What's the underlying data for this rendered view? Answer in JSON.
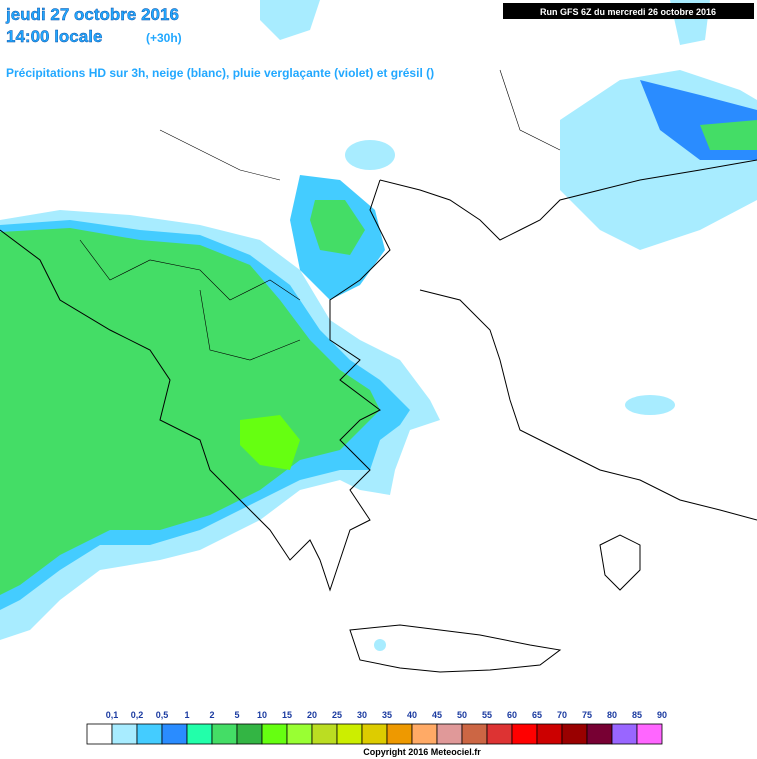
{
  "header": {
    "date": "jeudi 27 octobre 2016",
    "time": "14:00 locale",
    "offset": "(+30h)",
    "subtitle": "Précipitations HD sur 3h, neige (blanc), pluie verglaçante (violet) et grésil ()",
    "run": "Run GFS 6Z du mercredi 26 octobre 2016"
  },
  "legend": {
    "labels": [
      "0,1",
      "0,2",
      "0,5",
      "1",
      "2",
      "5",
      "10",
      "15",
      "20",
      "25",
      "30",
      "35",
      "40",
      "45",
      "50",
      "55",
      "60",
      "65",
      "70",
      "75",
      "80",
      "85",
      "90"
    ],
    "colors": [
      "#ffffff",
      "#a8ecff",
      "#44ccff",
      "#2a8cff",
      "#22ffaa",
      "#44dd66",
      "#33b544",
      "#66ff11",
      "#99ff33",
      "#bbdd22",
      "#ccee00",
      "#ddcc00",
      "#ee9900",
      "#ffaa66",
      "#e09999",
      "#cc6644",
      "#dd3333",
      "#ff0000",
      "#cc0000",
      "#990000",
      "#770033",
      "#9966ff",
      "#ff66ff"
    ]
  },
  "footer": {
    "copyright": "Copyright 2016 Meteociel.fr"
  }
}
